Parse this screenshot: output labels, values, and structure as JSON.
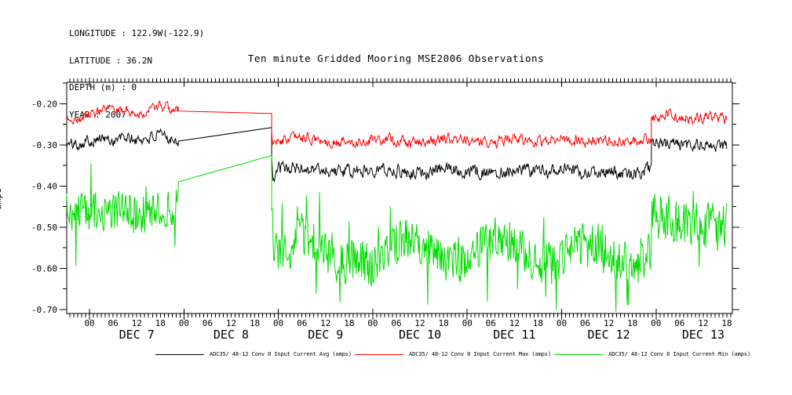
{
  "header": {
    "lines": [
      "LONGITUDE : 122.9W(-122.9)",
      "LATITUDE : 36.2N",
      "DEPTH (m) : 0",
      "YEAR : 2007"
    ]
  },
  "title": "Ten minute Gridded Mooring MSE2006 Observations",
  "chart_data": {
    "type": "line",
    "title": "Ten minute Gridded Mooring MSE2006 Observations",
    "xlabel": "",
    "ylabel": "amps",
    "grid": false,
    "legend_position": "bottom",
    "x_axis": {
      "unit": "hours relative to DEC 7 00:00",
      "range_hours": [
        -5.8,
        163.4
      ],
      "minor_tick_every_hours": 1,
      "labeled_hours_each_day": [
        0,
        6,
        12,
        18
      ],
      "hour_tick_labels": [
        "00",
        "06",
        "12",
        "18"
      ],
      "last_labeled_hour": 162,
      "days": [
        {
          "label": "DEC 7",
          "start_hour": 0
        },
        {
          "label": "DEC 8",
          "start_hour": 24
        },
        {
          "label": "DEC 9",
          "start_hour": 48
        },
        {
          "label": "DEC 10",
          "start_hour": 72
        },
        {
          "label": "DEC 11",
          "start_hour": 96
        },
        {
          "label": "DEC 12",
          "start_hour": 120
        },
        {
          "label": "DEC 13",
          "start_hour": 144
        }
      ]
    },
    "y_axis": {
      "range": [
        -0.71,
        -0.148
      ],
      "minor_tick_step": 0.05,
      "major_ticks": [
        {
          "value": -0.2,
          "label": "-0.20"
        },
        {
          "value": -0.3,
          "label": "-0.30"
        },
        {
          "value": -0.4,
          "label": "-0.40"
        },
        {
          "value": -0.5,
          "label": "-0.50"
        },
        {
          "value": -0.6,
          "label": "-0.60"
        },
        {
          "value": -0.7,
          "label": "-0.70"
        }
      ]
    },
    "sample_interval_hours": 0.1667,
    "data_gap": {
      "start_hour": 22.6,
      "end_hour": 46.3,
      "note": "linear interpolation across gap"
    },
    "series": [
      {
        "id": "avg",
        "name": "ADC35/ 48-12 Conv 0 Input Current Avg (amps)",
        "color": "#000000",
        "seed": 101,
        "persistence": 0.5,
        "spike_prob": 0,
        "spike_amp": 0,
        "segments": [
          {
            "type": "noisy",
            "amp": 0.012,
            "control": [
              [
                -5.8,
                -0.3
              ],
              [
                -3,
                -0.296
              ],
              [
                0,
                -0.289
              ],
              [
                3,
                -0.284
              ],
              [
                6,
                -0.29
              ],
              [
                9,
                -0.282
              ],
              [
                12,
                -0.29
              ],
              [
                15,
                -0.283
              ],
              [
                18,
                -0.279
              ],
              [
                20.5,
                -0.282
              ],
              [
                22.6,
                -0.29
              ]
            ]
          },
          {
            "type": "linear",
            "control": [
              [
                22.6,
                -0.291
              ],
              [
                46.3,
                -0.258
              ]
            ]
          },
          {
            "type": "noisy",
            "amp": 0.014,
            "control": [
              [
                46.3,
                -0.33
              ],
              [
                46.6,
                -0.388
              ],
              [
                48,
                -0.36
              ],
              [
                54,
                -0.356
              ],
              [
                60,
                -0.361
              ],
              [
                66,
                -0.368
              ],
              [
                72,
                -0.357
              ],
              [
                78,
                -0.362
              ],
              [
                84,
                -0.369
              ],
              [
                90,
                -0.357
              ],
              [
                96,
                -0.362
              ],
              [
                102,
                -0.368
              ],
              [
                108,
                -0.359
              ],
              [
                114,
                -0.364
              ],
              [
                120,
                -0.361
              ],
              [
                126,
                -0.37
              ],
              [
                132,
                -0.365
              ],
              [
                138,
                -0.374
              ],
              [
                142.8,
                -0.358
              ]
            ]
          },
          {
            "type": "noisy",
            "amp": 0.013,
            "control": [
              [
                142.8,
                -0.3
              ],
              [
                147,
                -0.295
              ],
              [
                152,
                -0.303
              ],
              [
                157,
                -0.298
              ],
              [
                162,
                -0.307
              ]
            ]
          }
        ]
      },
      {
        "id": "max",
        "name": "ADC35/ 48-12 Conv 0 Input Current Max (amps)",
        "color": "#ff0000",
        "seed": 202,
        "persistence": 0.5,
        "spike_prob": 0,
        "spike_amp": 0,
        "segments": [
          {
            "type": "noisy",
            "amp": 0.01,
            "control": [
              [
                -5.8,
                -0.236
              ],
              [
                -3,
                -0.239
              ],
              [
                0,
                -0.227
              ],
              [
                3,
                -0.22
              ],
              [
                5,
                -0.212
              ],
              [
                7,
                -0.224
              ],
              [
                9,
                -0.212
              ],
              [
                12,
                -0.227
              ],
              [
                15,
                -0.216
              ],
              [
                17,
                -0.207
              ],
              [
                19,
                -0.211
              ],
              [
                21,
                -0.215
              ],
              [
                22.6,
                -0.214
              ]
            ]
          },
          {
            "type": "linear",
            "control": [
              [
                22.6,
                -0.218
              ],
              [
                46.3,
                -0.224
              ]
            ]
          },
          {
            "type": "noisy",
            "amp": 0.011,
            "control": [
              [
                46.3,
                -0.262
              ],
              [
                46.6,
                -0.3
              ],
              [
                48,
                -0.29
              ],
              [
                54,
                -0.283
              ],
              [
                60,
                -0.291
              ],
              [
                66,
                -0.296
              ],
              [
                72,
                -0.287
              ],
              [
                78,
                -0.29
              ],
              [
                84,
                -0.296
              ],
              [
                90,
                -0.285
              ],
              [
                96,
                -0.29
              ],
              [
                102,
                -0.294
              ],
              [
                108,
                -0.287
              ],
              [
                114,
                -0.29
              ],
              [
                120,
                -0.284
              ],
              [
                126,
                -0.292
              ],
              [
                132,
                -0.289
              ],
              [
                138,
                -0.296
              ],
              [
                142.8,
                -0.287
              ]
            ]
          },
          {
            "type": "noisy",
            "amp": 0.011,
            "control": [
              [
                142.8,
                -0.237
              ],
              [
                147,
                -0.228
              ],
              [
                152,
                -0.238
              ],
              [
                157,
                -0.231
              ],
              [
                162,
                -0.236
              ]
            ]
          }
        ]
      },
      {
        "id": "min",
        "name": "ADC35/ 48-12 Conv 0 Input Current Min (amps)",
        "color": "#00dd00",
        "seed": 303,
        "persistence": 0.12,
        "spike_prob": 0.05,
        "spike_amp": 0.09,
        "segments": [
          {
            "type": "noisy",
            "amp": 0.046,
            "spikes": true,
            "control": [
              [
                -5.8,
                -0.458
              ],
              [
                0,
                -0.467
              ],
              [
                6,
                -0.46
              ],
              [
                12,
                -0.469
              ],
              [
                18,
                -0.46
              ],
              [
                22.6,
                -0.442
              ]
            ]
          },
          {
            "type": "linear",
            "control": [
              [
                22.6,
                -0.39
              ],
              [
                46.3,
                -0.326
              ]
            ]
          },
          {
            "type": "noisy",
            "amp": 0.05,
            "spikes": true,
            "control": [
              [
                46.3,
                -0.48
              ],
              [
                47,
                -0.56
              ],
              [
                50,
                -0.573
              ],
              [
                54,
                -0.517
              ],
              [
                58,
                -0.545
              ],
              [
                63,
                -0.59
              ],
              [
                68,
                -0.577
              ],
              [
                72,
                -0.593
              ],
              [
                76,
                -0.545
              ],
              [
                81,
                -0.52
              ],
              [
                86,
                -0.55
              ],
              [
                90,
                -0.577
              ],
              [
                94,
                -0.587
              ],
              [
                99,
                -0.55
              ],
              [
                104,
                -0.526
              ],
              [
                108,
                -0.545
              ],
              [
                113,
                -0.583
              ],
              [
                118,
                -0.589
              ],
              [
                122,
                -0.56
              ],
              [
                127,
                -0.531
              ],
              [
                131,
                -0.55
              ],
              [
                135,
                -0.584
              ],
              [
                139,
                -0.598
              ],
              [
                142.8,
                -0.555
              ]
            ]
          },
          {
            "type": "noisy",
            "amp": 0.054,
            "spikes": true,
            "control": [
              [
                142.8,
                -0.47
              ],
              [
                147,
                -0.479
              ],
              [
                152,
                -0.498
              ],
              [
                157,
                -0.484
              ],
              [
                162,
                -0.489
              ]
            ]
          }
        ]
      }
    ],
    "legend": [
      {
        "label": "ADC35/ 48-12 Conv 0 Input Current Avg (amps)",
        "color": "#000000"
      },
      {
        "label": "ADC35/ 48-12 Conv 0 Input Current Max (amps)",
        "color": "#ff0000"
      },
      {
        "label": "ADC35/ 48-12 Conv 0 Input Current Min (amps)",
        "color": "#00dd00"
      }
    ]
  }
}
